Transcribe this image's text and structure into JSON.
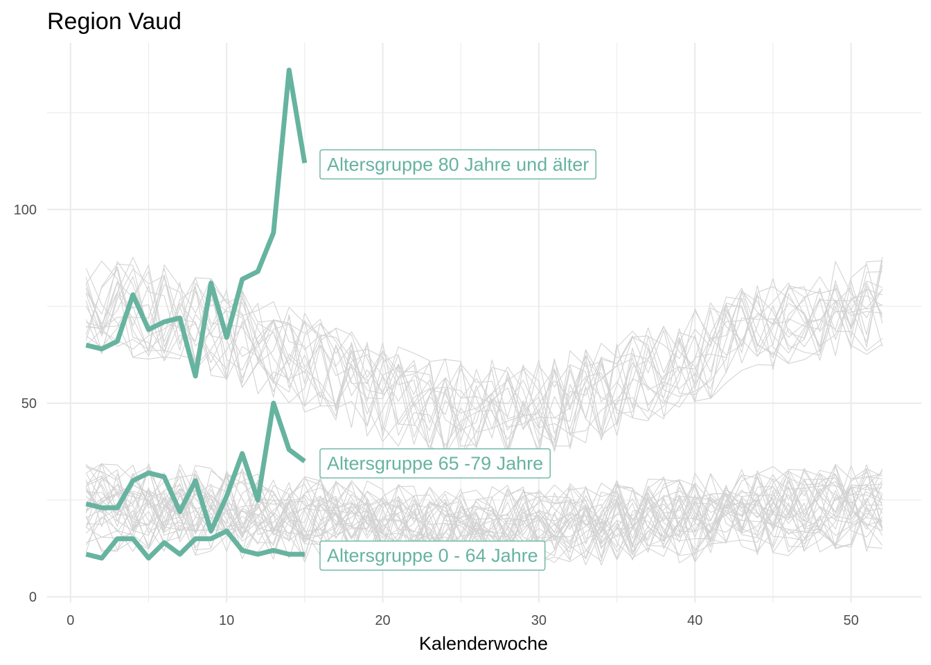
{
  "colors": {
    "highlight": "#66b3a0",
    "background_series": "#d3d3d3",
    "grid": "#ebebeb",
    "panel_background": "#ffffff"
  },
  "chart_data": {
    "type": "line",
    "title": "Region Vaud",
    "xlabel": "Kalenderwoche",
    "ylabel": "",
    "xlim": [
      -1.5,
      54.5
    ],
    "ylim": [
      -1.5,
      143
    ],
    "x_ticks": [
      0,
      10,
      20,
      30,
      40,
      50
    ],
    "y_ticks": [
      0,
      50,
      100
    ],
    "x_minor_ticks": [
      5,
      15,
      25,
      35,
      45
    ],
    "y_minor_ticks": [
      25,
      75,
      125
    ],
    "grid": true,
    "legend": "none",
    "highlighted_series": [
      {
        "name": "Altersgruppe 80 Jahre und älter",
        "x": [
          1,
          2,
          3,
          4,
          5,
          6,
          7,
          8,
          9,
          10,
          11,
          12,
          13,
          14,
          15
        ],
        "values": [
          65,
          64,
          66,
          78,
          69,
          71,
          72,
          57,
          81,
          67,
          82,
          84,
          94,
          136,
          112
        ]
      },
      {
        "name": "Altersgruppe 65 -79 Jahre",
        "x": [
          1,
          2,
          3,
          4,
          5,
          6,
          7,
          8,
          9,
          10,
          11,
          12,
          13,
          14,
          15
        ],
        "values": [
          24,
          23,
          23,
          30,
          32,
          31,
          22,
          30,
          17,
          26,
          37,
          25,
          50,
          38,
          35
        ]
      },
      {
        "name": "Altersgruppe 0 - 64 Jahre",
        "x": [
          1,
          2,
          3,
          4,
          5,
          6,
          7,
          8,
          9,
          10,
          11,
          12,
          13,
          14,
          15
        ],
        "values": [
          11,
          10,
          15,
          15,
          10,
          14,
          11,
          15,
          15,
          17,
          12,
          11,
          12,
          11,
          11
        ]
      }
    ],
    "background_series_description": {
      "x_range": [
        1,
        52
      ],
      "groups": [
        {
          "base_level": 62,
          "count": 18
        },
        {
          "base_level": 23,
          "count": 18
        },
        {
          "base_level": 18,
          "count": 14
        }
      ]
    }
  }
}
